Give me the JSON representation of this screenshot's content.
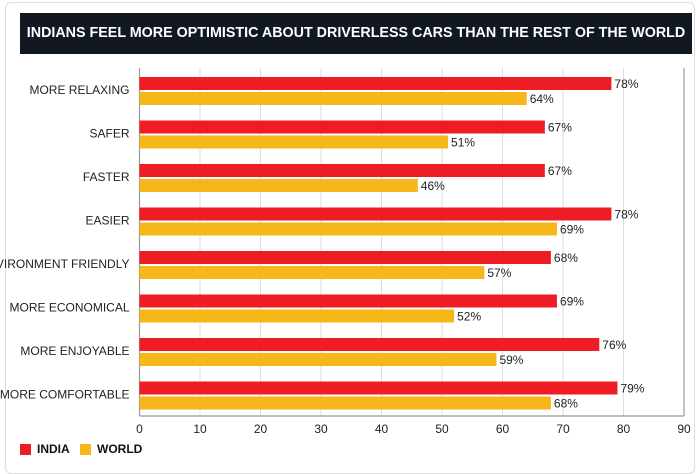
{
  "chart_data": {
    "type": "bar",
    "orientation": "horizontal",
    "title": "INDIANS FEEL MORE OPTIMISTIC ABOUT DRIVERLESS CARS THAN THE REST OF THE WORLD",
    "categories": [
      "MORE RELAXING",
      "SAFER",
      "FASTER",
      "EASIER",
      "ENVIRONMENT FRIENDLY",
      "MORE ECONOMICAL",
      "MORE ENJOYABLE",
      "MORE COMFORTABLE"
    ],
    "series": [
      {
        "name": "INDIA",
        "color": "#ee1c25",
        "values": [
          78,
          67,
          67,
          78,
          68,
          69,
          76,
          79
        ]
      },
      {
        "name": "WORLD",
        "color": "#f5b71a",
        "values": [
          64,
          51,
          46,
          69,
          57,
          52,
          59,
          68
        ]
      }
    ],
    "value_suffix": "%",
    "xlim": [
      0,
      90
    ],
    "xticks": [
      0,
      10,
      20,
      30,
      40,
      50,
      60,
      70,
      80,
      90
    ],
    "grid": true,
    "legend": "bottom-left"
  }
}
